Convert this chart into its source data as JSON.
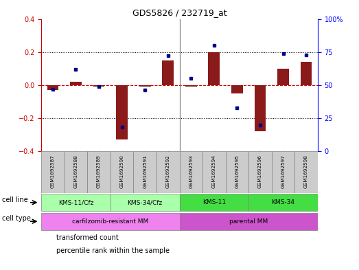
{
  "title": "GDS5826 / 232719_at",
  "samples": [
    "GSM1692587",
    "GSM1692588",
    "GSM1692589",
    "GSM1692590",
    "GSM1692591",
    "GSM1692592",
    "GSM1692593",
    "GSM1692594",
    "GSM1692595",
    "GSM1692596",
    "GSM1692597",
    "GSM1692598"
  ],
  "transformed_count": [
    -0.03,
    0.02,
    -0.01,
    -0.33,
    -0.01,
    0.15,
    -0.01,
    0.2,
    -0.05,
    -0.28,
    0.1,
    0.14
  ],
  "percentile_rank": [
    47,
    62,
    49,
    18,
    46,
    72,
    55,
    80,
    33,
    20,
    74,
    73
  ],
  "ylim_left": [
    -0.4,
    0.4
  ],
  "ylim_right": [
    0,
    100
  ],
  "yticks_left": [
    -0.4,
    -0.2,
    0.0,
    0.2,
    0.4
  ],
  "yticks_right": [
    0,
    25,
    50,
    75,
    100
  ],
  "ytick_labels_right": [
    "0",
    "25",
    "50",
    "75",
    "100%"
  ],
  "bar_color": "#8B1A1A",
  "dot_color": "#00008B",
  "hline_color": "#CC0000",
  "grid_color": "#000000",
  "cell_lines": [
    {
      "label": "KMS-11/Cfz",
      "start": 0,
      "end": 3,
      "color": "#AAFFAA"
    },
    {
      "label": "KMS-34/Cfz",
      "start": 3,
      "end": 6,
      "color": "#AAFFAA"
    },
    {
      "label": "KMS-11",
      "start": 6,
      "end": 9,
      "color": "#44DD44"
    },
    {
      "label": "KMS-34",
      "start": 9,
      "end": 12,
      "color": "#44DD44"
    }
  ],
  "cell_types": [
    {
      "label": "carfilzomib-resistant MM",
      "start": 0,
      "end": 6,
      "color": "#EE82EE"
    },
    {
      "label": "parental MM",
      "start": 6,
      "end": 12,
      "color": "#CC55CC"
    }
  ],
  "cell_line_row_label": "cell line",
  "cell_type_row_label": "cell type",
  "legend_items": [
    {
      "color": "#8B1A1A",
      "label": "transformed count"
    },
    {
      "color": "#00008B",
      "label": "percentile rank within the sample"
    }
  ],
  "background_color": "#FFFFFF"
}
